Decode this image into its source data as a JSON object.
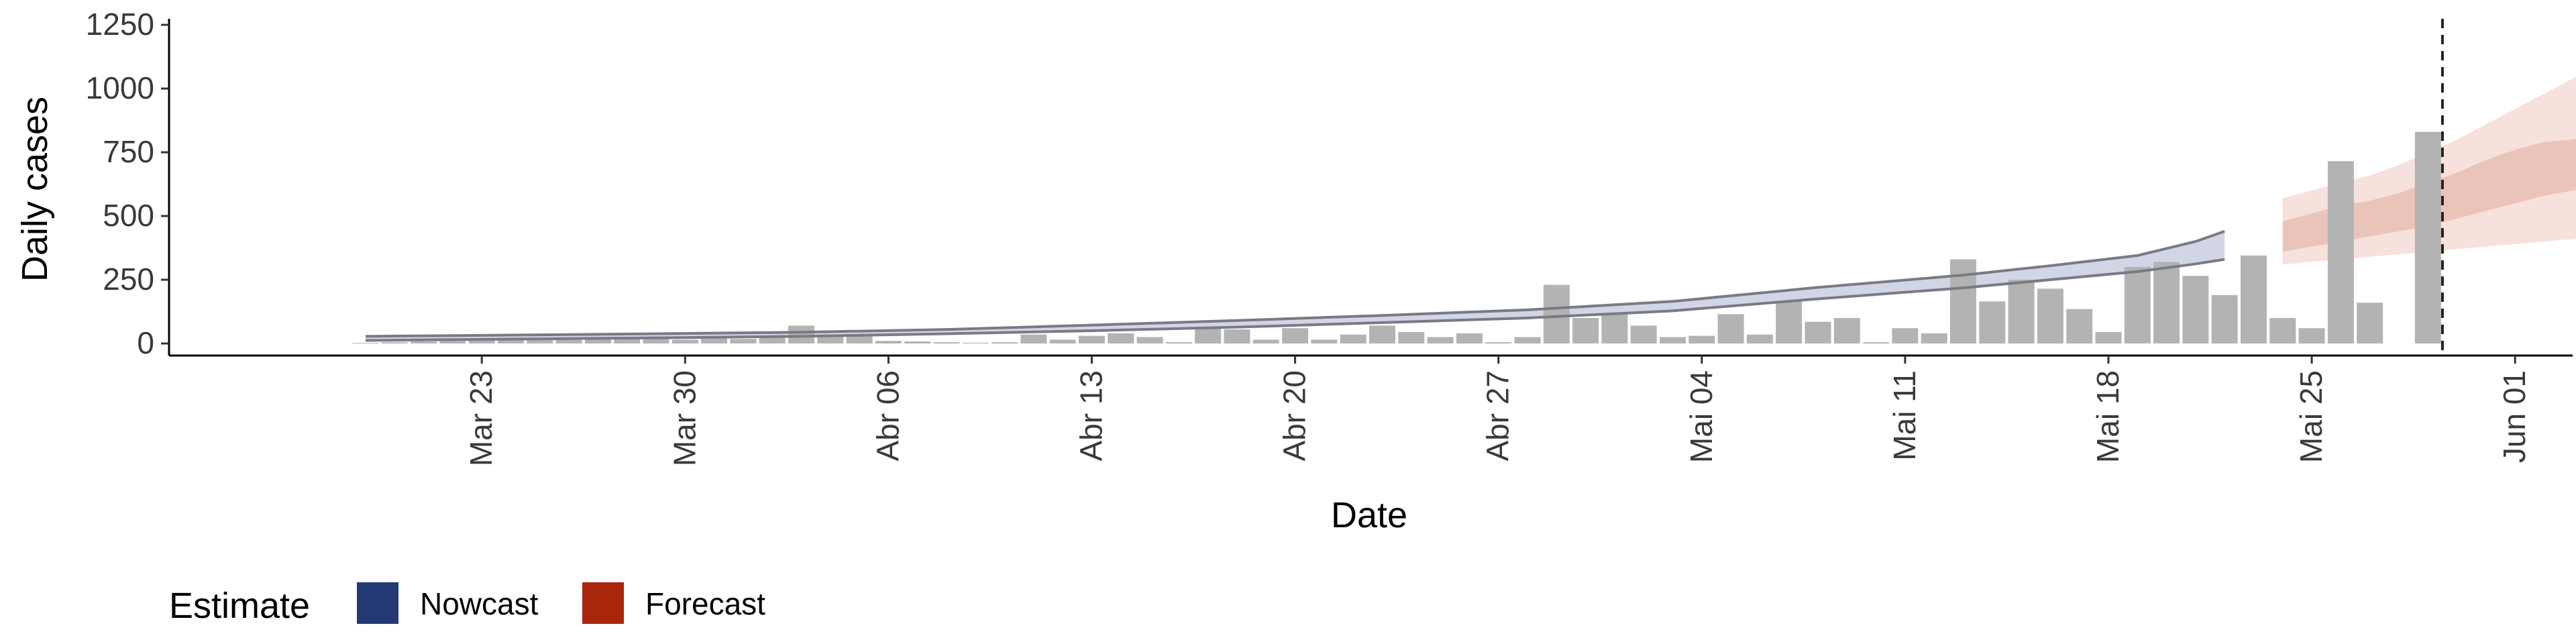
{
  "chart_data": {
    "type": "bar",
    "xlabel": "Date",
    "ylabel": "Daily cases",
    "ylim": [
      -50,
      1250
    ],
    "y_ticks": [
      0,
      250,
      500,
      750,
      1000,
      1250
    ],
    "y_tick_labels": [
      "0",
      "250",
      "500",
      "750",
      "1000",
      "1250"
    ],
    "x_start_date": "Mar 19",
    "x_ticks": [
      {
        "day": 4,
        "label": "Mar 23"
      },
      {
        "day": 11,
        "label": "Mar 30"
      },
      {
        "day": 18,
        "label": "Abr 06"
      },
      {
        "day": 25,
        "label": "Abr 13"
      },
      {
        "day": 32,
        "label": "Abr 20"
      },
      {
        "day": 39,
        "label": "Abr 27"
      },
      {
        "day": 46,
        "label": "Mai 04"
      },
      {
        "day": 53,
        "label": "Mai 11"
      },
      {
        "day": 60,
        "label": "Mai 18"
      },
      {
        "day": 67,
        "label": "Mai 25"
      },
      {
        "day": 74,
        "label": "Jun 01"
      }
    ],
    "bars": [
      {
        "day": 0,
        "value": 2
      },
      {
        "day": 1,
        "value": 5
      },
      {
        "day": 2,
        "value": 8
      },
      {
        "day": 3,
        "value": 10
      },
      {
        "day": 4,
        "value": 12
      },
      {
        "day": 5,
        "value": 15
      },
      {
        "day": 6,
        "value": 18
      },
      {
        "day": 7,
        "value": 15
      },
      {
        "day": 8,
        "value": 20
      },
      {
        "day": 9,
        "value": 25
      },
      {
        "day": 10,
        "value": 22
      },
      {
        "day": 11,
        "value": 15
      },
      {
        "day": 12,
        "value": 20
      },
      {
        "day": 13,
        "value": 18
      },
      {
        "day": 14,
        "value": 25
      },
      {
        "day": 15,
        "value": 70
      },
      {
        "day": 16,
        "value": 35
      },
      {
        "day": 17,
        "value": 30
      },
      {
        "day": 18,
        "value": 10
      },
      {
        "day": 19,
        "value": 8
      },
      {
        "day": 20,
        "value": 5
      },
      {
        "day": 21,
        "value": 3
      },
      {
        "day": 22,
        "value": 5
      },
      {
        "day": 23,
        "value": 35
      },
      {
        "day": 24,
        "value": 15
      },
      {
        "day": 25,
        "value": 30
      },
      {
        "day": 26,
        "value": 40
      },
      {
        "day": 27,
        "value": 25
      },
      {
        "day": 28,
        "value": 5
      },
      {
        "day": 29,
        "value": 60
      },
      {
        "day": 30,
        "value": 55
      },
      {
        "day": 31,
        "value": 15
      },
      {
        "day": 32,
        "value": 60
      },
      {
        "day": 33,
        "value": 15
      },
      {
        "day": 34,
        "value": 35
      },
      {
        "day": 35,
        "value": 70
      },
      {
        "day": 36,
        "value": 45
      },
      {
        "day": 37,
        "value": 25
      },
      {
        "day": 38,
        "value": 40
      },
      {
        "day": 39,
        "value": 5
      },
      {
        "day": 40,
        "value": 25
      },
      {
        "day": 41,
        "value": 230
      },
      {
        "day": 42,
        "value": 100
      },
      {
        "day": 43,
        "value": 120
      },
      {
        "day": 44,
        "value": 70
      },
      {
        "day": 45,
        "value": 25
      },
      {
        "day": 46,
        "value": 30
      },
      {
        "day": 47,
        "value": 115
      },
      {
        "day": 48,
        "value": 35
      },
      {
        "day": 49,
        "value": 165
      },
      {
        "day": 50,
        "value": 85
      },
      {
        "day": 51,
        "value": 100
      },
      {
        "day": 52,
        "value": 5
      },
      {
        "day": 53,
        "value": 60
      },
      {
        "day": 54,
        "value": 40
      },
      {
        "day": 55,
        "value": 330
      },
      {
        "day": 56,
        "value": 165
      },
      {
        "day": 57,
        "value": 250
      },
      {
        "day": 58,
        "value": 215
      },
      {
        "day": 59,
        "value": 135
      },
      {
        "day": 60,
        "value": 45
      },
      {
        "day": 61,
        "value": 300
      },
      {
        "day": 62,
        "value": 320
      },
      {
        "day": 63,
        "value": 265
      },
      {
        "day": 64,
        "value": 190
      },
      {
        "day": 65,
        "value": 345
      },
      {
        "day": 66,
        "value": 100
      },
      {
        "day": 67,
        "value": 60
      },
      {
        "day": 68,
        "value": 715
      },
      {
        "day": 69,
        "value": 160
      },
      {
        "day": 70,
        "value": 0
      },
      {
        "day": 71,
        "value": 830
      }
    ],
    "nowcast": {
      "days": [
        0,
        5,
        10,
        15,
        20,
        25,
        30,
        35,
        40,
        45,
        50,
        55,
        58,
        61,
        63,
        64
      ],
      "median": [
        20,
        25,
        30,
        35,
        45,
        60,
        75,
        95,
        115,
        145,
        195,
        240,
        275,
        310,
        345,
        370
      ],
      "lower": [
        12,
        17,
        22,
        28,
        38,
        50,
        64,
        82,
        100,
        128,
        175,
        218,
        250,
        282,
        312,
        330
      ],
      "upper": [
        28,
        33,
        38,
        44,
        55,
        72,
        90,
        110,
        132,
        165,
        220,
        268,
        305,
        345,
        400,
        440
      ]
    },
    "forecast": {
      "days": [
        66,
        67,
        68,
        69,
        70,
        71,
        72,
        73,
        74,
        75,
        76,
        77,
        78
      ],
      "median": [
        420,
        440,
        460,
        480,
        510,
        540,
        570,
        600,
        640,
        680,
        710,
        750,
        800
      ],
      "lower50": [
        360,
        380,
        400,
        420,
        440,
        460,
        490,
        520,
        550,
        580,
        600,
        620,
        640
      ],
      "upper50": [
        480,
        510,
        540,
        560,
        590,
        630,
        670,
        720,
        760,
        790,
        800,
        840,
        910
      ],
      "lower90": [
        310,
        320,
        330,
        340,
        350,
        360,
        370,
        380,
        390,
        400,
        410,
        420,
        430
      ],
      "upper90": [
        570,
        600,
        630,
        660,
        700,
        750,
        800,
        860,
        920,
        980,
        1040,
        1120,
        1200
      ]
    },
    "vline_day": 71.5,
    "legend": {
      "title": "Estimate",
      "entries": [
        {
          "label": "Nowcast",
          "color": "#253a74"
        },
        {
          "label": "Forecast",
          "color": "#a9260c"
        }
      ],
      "placement": "bottom-left"
    },
    "colors": {
      "bar": "#b3b3b3",
      "nowcast_band": "#bdc3dc",
      "nowcast_line": "#7a7a85",
      "forecast_band90": "#f7e1dc",
      "forecast_band50": "#ebc4b9"
    }
  }
}
